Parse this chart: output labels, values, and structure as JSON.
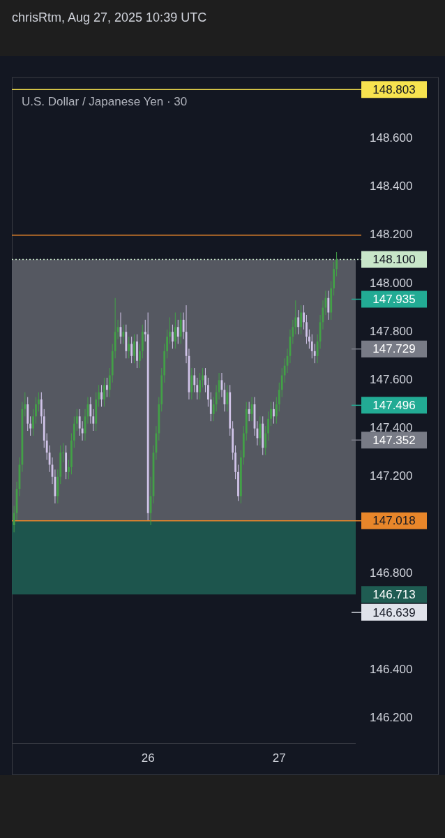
{
  "chart_data": {
    "type": "candlestick",
    "title": "U.S. Dollar / Japanese Yen · 30",
    "subtitle": "chrisRtm, Aug 27, 2025 10:39 UTC",
    "x": [
      "2025-08-24T23:30",
      "2025-08-25T00:00",
      "2025-08-25T00:30",
      "2025-08-25T01:00",
      "2025-08-25T01:30",
      "2025-08-25T02:00",
      "2025-08-25T02:30",
      "2025-08-25T03:00",
      "2025-08-25T03:30",
      "2025-08-25T04:00",
      "2025-08-25T04:30",
      "2025-08-25T05:00",
      "2025-08-25T05:30",
      "2025-08-25T06:00",
      "2025-08-25T06:30",
      "2025-08-25T07:00",
      "2025-08-25T07:30",
      "2025-08-25T08:00",
      "2025-08-25T08:30",
      "2025-08-25T09:00",
      "2025-08-25T09:30",
      "2025-08-25T10:00",
      "2025-08-25T10:30",
      "2025-08-25T11:00",
      "2025-08-25T11:30",
      "2025-08-25T12:00",
      "2025-08-25T12:30",
      "2025-08-25T13:00",
      "2025-08-25T13:30",
      "2025-08-25T14:00",
      "2025-08-25T14:30",
      "2025-08-25T15:00",
      "2025-08-25T15:30",
      "2025-08-25T16:00",
      "2025-08-25T16:30",
      "2025-08-25T17:00",
      "2025-08-25T17:30",
      "2025-08-25T18:00",
      "2025-08-25T18:30",
      "2025-08-25T19:00",
      "2025-08-25T19:30",
      "2025-08-25T20:00",
      "2025-08-25T20:30",
      "2025-08-25T21:00",
      "2025-08-25T21:30",
      "2025-08-25T22:00",
      "2025-08-25T22:30",
      "2025-08-25T23:00",
      "2025-08-25T23:30",
      "2025-08-26T00:00",
      "2025-08-26T00:30",
      "2025-08-26T01:00",
      "2025-08-26T01:30",
      "2025-08-26T02:00",
      "2025-08-26T02:30",
      "2025-08-26T03:00",
      "2025-08-26T03:30",
      "2025-08-26T04:00",
      "2025-08-26T04:30",
      "2025-08-26T05:00",
      "2025-08-26T05:30",
      "2025-08-26T06:00",
      "2025-08-26T06:30",
      "2025-08-26T07:00",
      "2025-08-26T07:30",
      "2025-08-26T08:00",
      "2025-08-26T08:30",
      "2025-08-26T09:00",
      "2025-08-26T09:30",
      "2025-08-26T10:00",
      "2025-08-26T10:30",
      "2025-08-26T11:00",
      "2025-08-26T11:30",
      "2025-08-26T12:00",
      "2025-08-26T12:30",
      "2025-08-26T13:00",
      "2025-08-26T13:30",
      "2025-08-26T14:00",
      "2025-08-26T14:30",
      "2025-08-26T15:00",
      "2025-08-26T15:30",
      "2025-08-26T16:00",
      "2025-08-26T16:30",
      "2025-08-26T17:00",
      "2025-08-26T17:30",
      "2025-08-26T18:00",
      "2025-08-26T18:30",
      "2025-08-26T19:00",
      "2025-08-26T19:30",
      "2025-08-26T20:00",
      "2025-08-26T20:30",
      "2025-08-26T21:00",
      "2025-08-26T21:30",
      "2025-08-26T22:00",
      "2025-08-26T22:30",
      "2025-08-26T23:00",
      "2025-08-26T23:30",
      "2025-08-27T00:00",
      "2025-08-27T00:30",
      "2025-08-27T01:00",
      "2025-08-27T01:30",
      "2025-08-27T02:00",
      "2025-08-27T02:30",
      "2025-08-27T03:00",
      "2025-08-27T03:30",
      "2025-08-27T04:00",
      "2025-08-27T04:30",
      "2025-08-27T05:00",
      "2025-08-27T05:30",
      "2025-08-27T06:00",
      "2025-08-27T06:30",
      "2025-08-27T07:00",
      "2025-08-27T07:30",
      "2025-08-27T08:00",
      "2025-08-27T08:30",
      "2025-08-27T09:00",
      "2025-08-27T09:30",
      "2025-08-27T10:00",
      "2025-08-27T10:30"
    ],
    "ohlc": [
      [
        147.0,
        147.08,
        146.97,
        147.05
      ],
      [
        147.05,
        147.18,
        147.02,
        147.15
      ],
      [
        147.15,
        147.28,
        147.12,
        147.25
      ],
      [
        147.25,
        147.51,
        147.22,
        147.48
      ],
      [
        147.48,
        147.55,
        147.45,
        147.5
      ],
      [
        147.5,
        147.53,
        147.39,
        147.42
      ],
      [
        147.42,
        147.45,
        147.37,
        147.4
      ],
      [
        147.4,
        147.48,
        147.37,
        147.45
      ],
      [
        147.45,
        147.53,
        147.42,
        147.5
      ],
      [
        147.5,
        147.55,
        147.47,
        147.52
      ],
      [
        147.52,
        147.55,
        147.42,
        147.45
      ],
      [
        147.45,
        147.48,
        147.32,
        147.35
      ],
      [
        147.35,
        147.38,
        147.27,
        147.3
      ],
      [
        147.3,
        147.33,
        147.22,
        147.25
      ],
      [
        147.25,
        147.28,
        147.17,
        147.2
      ],
      [
        147.2,
        147.23,
        147.09,
        147.12
      ],
      [
        147.12,
        147.23,
        147.09,
        147.2
      ],
      [
        147.2,
        147.33,
        147.17,
        147.3
      ],
      [
        147.3,
        147.34,
        147.26,
        147.3
      ],
      [
        147.3,
        147.33,
        147.19,
        147.22
      ],
      [
        147.22,
        147.27,
        147.19,
        147.24
      ],
      [
        147.24,
        147.38,
        147.21,
        147.35
      ],
      [
        147.35,
        147.45,
        147.32,
        147.42
      ],
      [
        147.42,
        147.48,
        147.39,
        147.45
      ],
      [
        147.45,
        147.48,
        147.37,
        147.4
      ],
      [
        147.4,
        147.43,
        147.35,
        147.38
      ],
      [
        147.38,
        147.48,
        147.35,
        147.45
      ],
      [
        147.45,
        147.53,
        147.42,
        147.5
      ],
      [
        147.5,
        147.53,
        147.42,
        147.45
      ],
      [
        147.45,
        147.48,
        147.39,
        147.42
      ],
      [
        147.42,
        147.55,
        147.39,
        147.52
      ],
      [
        147.52,
        147.58,
        147.49,
        147.55
      ],
      [
        147.55,
        147.58,
        147.49,
        147.52
      ],
      [
        147.52,
        147.61,
        147.49,
        147.58
      ],
      [
        147.58,
        147.61,
        147.53,
        147.56
      ],
      [
        147.56,
        147.65,
        147.53,
        147.62
      ],
      [
        147.62,
        147.75,
        147.59,
        147.72
      ],
      [
        147.72,
        147.94,
        147.69,
        147.8
      ],
      [
        147.8,
        147.85,
        147.77,
        147.82
      ],
      [
        147.82,
        147.88,
        147.75,
        147.78
      ],
      [
        147.78,
        147.83,
        147.75,
        147.8
      ],
      [
        147.8,
        147.83,
        147.69,
        147.72
      ],
      [
        147.72,
        147.78,
        147.69,
        147.75
      ],
      [
        147.75,
        147.78,
        147.67,
        147.7
      ],
      [
        147.7,
        147.79,
        147.67,
        147.76
      ],
      [
        147.76,
        147.79,
        147.65,
        147.68
      ],
      [
        147.68,
        147.75,
        147.65,
        147.72
      ],
      [
        147.72,
        147.83,
        147.69,
        147.8
      ],
      [
        147.8,
        147.85,
        147.76,
        147.79
      ],
      [
        147.79,
        147.88,
        147.02,
        147.05
      ],
      [
        147.05,
        147.2,
        147.0,
        147.12
      ],
      [
        147.12,
        147.33,
        147.09,
        147.3
      ],
      [
        147.3,
        147.41,
        147.27,
        147.38
      ],
      [
        147.38,
        147.53,
        147.35,
        147.5
      ],
      [
        147.5,
        147.65,
        147.47,
        147.62
      ],
      [
        147.62,
        147.75,
        147.59,
        147.72
      ],
      [
        147.72,
        147.81,
        147.69,
        147.78
      ],
      [
        147.78,
        147.86,
        147.75,
        147.8
      ],
      [
        147.8,
        147.83,
        147.73,
        147.76
      ],
      [
        147.76,
        147.88,
        147.73,
        147.82
      ],
      [
        147.82,
        147.85,
        147.75,
        147.78
      ],
      [
        147.78,
        147.88,
        147.75,
        147.85
      ],
      [
        147.85,
        147.88,
        147.77,
        147.8
      ],
      [
        147.8,
        147.91,
        147.67,
        147.7
      ],
      [
        147.7,
        147.73,
        147.52,
        147.55
      ],
      [
        147.55,
        147.65,
        147.52,
        147.62
      ],
      [
        147.62,
        147.65,
        147.55,
        147.58
      ],
      [
        147.58,
        147.61,
        147.52,
        147.55
      ],
      [
        147.55,
        147.63,
        147.52,
        147.6
      ],
      [
        147.6,
        147.65,
        147.57,
        147.62
      ],
      [
        147.62,
        147.65,
        147.55,
        147.58
      ],
      [
        147.58,
        147.61,
        147.49,
        147.52
      ],
      [
        147.52,
        147.55,
        147.43,
        147.46
      ],
      [
        147.46,
        147.53,
        147.43,
        147.5
      ],
      [
        147.5,
        147.58,
        147.47,
        147.55
      ],
      [
        147.55,
        147.63,
        147.52,
        147.6
      ],
      [
        147.6,
        147.63,
        147.53,
        147.56
      ],
      [
        147.56,
        147.59,
        147.47,
        147.5
      ],
      [
        147.5,
        147.58,
        147.47,
        147.55
      ],
      [
        147.55,
        147.58,
        147.37,
        147.4
      ],
      [
        147.4,
        147.43,
        147.27,
        147.3
      ],
      [
        147.3,
        147.33,
        147.19,
        147.22
      ],
      [
        147.22,
        147.25,
        147.1,
        147.12
      ],
      [
        147.12,
        147.31,
        147.09,
        147.28
      ],
      [
        147.28,
        147.41,
        147.25,
        147.38
      ],
      [
        147.38,
        147.51,
        147.35,
        147.48
      ],
      [
        147.48,
        147.51,
        147.43,
        147.46
      ],
      [
        147.46,
        147.53,
        147.43,
        147.5
      ],
      [
        147.5,
        147.53,
        147.37,
        147.4
      ],
      [
        147.4,
        147.43,
        147.33,
        147.36
      ],
      [
        147.36,
        147.45,
        147.33,
        147.42
      ],
      [
        147.42,
        147.45,
        147.29,
        147.32
      ],
      [
        147.32,
        147.41,
        147.29,
        147.38
      ],
      [
        147.38,
        147.47,
        147.35,
        147.44
      ],
      [
        147.44,
        147.51,
        147.41,
        147.48
      ],
      [
        147.48,
        147.51,
        147.42,
        147.45
      ],
      [
        147.45,
        147.53,
        147.42,
        147.5
      ],
      [
        147.5,
        147.59,
        147.47,
        147.56
      ],
      [
        147.56,
        147.65,
        147.53,
        147.62
      ],
      [
        147.62,
        147.69,
        147.59,
        147.66
      ],
      [
        147.66,
        147.73,
        147.63,
        147.7
      ],
      [
        147.7,
        147.81,
        147.67,
        147.78
      ],
      [
        147.78,
        147.85,
        147.75,
        147.82
      ],
      [
        147.82,
        147.93,
        147.79,
        147.86
      ],
      [
        147.86,
        147.89,
        147.79,
        147.82
      ],
      [
        147.82,
        147.91,
        147.79,
        147.88
      ],
      [
        147.88,
        147.91,
        147.81,
        147.84
      ],
      [
        147.84,
        147.87,
        147.75,
        147.78
      ],
      [
        147.78,
        147.81,
        147.73,
        147.76
      ],
      [
        147.76,
        147.79,
        147.69,
        147.72
      ],
      [
        147.72,
        147.75,
        147.67,
        147.7
      ],
      [
        147.7,
        147.79,
        147.67,
        147.76
      ],
      [
        147.76,
        147.87,
        147.73,
        147.84
      ],
      [
        147.84,
        147.93,
        147.81,
        147.9
      ],
      [
        147.9,
        147.97,
        147.87,
        147.94
      ],
      [
        147.94,
        147.97,
        147.85,
        147.88
      ],
      [
        147.88,
        148.01,
        147.85,
        147.98
      ],
      [
        147.98,
        148.09,
        147.95,
        148.06
      ],
      [
        148.06,
        148.13,
        148.03,
        148.1
      ]
    ],
    "colors": [
      "#43a047",
      "#43a047",
      "#43a047",
      "#43a047",
      "#43a047",
      "#d1c4e9",
      "#d1c4e9",
      "#43a047",
      "#43a047",
      "#43a047",
      "#d1c4e9",
      "#d1c4e9",
      "#d1c4e9",
      "#d1c4e9",
      "#d1c4e9",
      "#d1c4e9",
      "#43a047",
      "#43a047",
      "#43a047",
      "#d1c4e9",
      "#43a047",
      "#43a047",
      "#43a047",
      "#43a047",
      "#d1c4e9",
      "#d1c4e9",
      "#43a047",
      "#43a047",
      "#d1c4e9",
      "#d1c4e9",
      "#43a047",
      "#43a047",
      "#d1c4e9",
      "#43a047",
      "#d1c4e9",
      "#43a047",
      "#43a047",
      "#43a047",
      "#43a047",
      "#d1c4e9",
      "#43a047",
      "#d1c4e9",
      "#43a047",
      "#d1c4e9",
      "#43a047",
      "#d1c4e9",
      "#43a047",
      "#43a047",
      "#d1c4e9",
      "#d1c4e9",
      "#43a047",
      "#43a047",
      "#43a047",
      "#43a047",
      "#43a047",
      "#43a047",
      "#43a047",
      "#43a047",
      "#d1c4e9",
      "#43a047",
      "#d1c4e9",
      "#43a047",
      "#d1c4e9",
      "#d1c4e9",
      "#d1c4e9",
      "#43a047",
      "#d1c4e9",
      "#d1c4e9",
      "#43a047",
      "#43a047",
      "#d1c4e9",
      "#d1c4e9",
      "#d1c4e9",
      "#43a047",
      "#43a047",
      "#43a047",
      "#d1c4e9",
      "#d1c4e9",
      "#43a047",
      "#d1c4e9",
      "#d1c4e9",
      "#d1c4e9",
      "#d1c4e9",
      "#43a047",
      "#43a047",
      "#43a047",
      "#d1c4e9",
      "#43a047",
      "#d1c4e9",
      "#d1c4e9",
      "#43a047",
      "#d1c4e9",
      "#43a047",
      "#43a047",
      "#43a047",
      "#d1c4e9",
      "#43a047",
      "#43a047",
      "#43a047",
      "#43a047",
      "#43a047",
      "#43a047",
      "#43a047",
      "#43a047",
      "#d1c4e9",
      "#43a047",
      "#d1c4e9",
      "#d1c4e9",
      "#d1c4e9",
      "#d1c4e9",
      "#d1c4e9",
      "#43a047",
      "#43a047",
      "#43a047",
      "#43a047",
      "#d1c4e9",
      "#43a047",
      "#43a047",
      "#43a047"
    ],
    "xlim": [
      "2025-08-24T23:06",
      "2025-08-27T14:00"
    ],
    "xticks": [
      {
        "value": "2025-08-26",
        "label": "26"
      },
      {
        "value": "2025-08-27",
        "label": "27"
      }
    ],
    "ylim": [
      146.098,
      148.855
    ],
    "yticks": [
      {
        "value": 146.2,
        "label": "146.200"
      },
      {
        "value": 146.4,
        "label": "146.400"
      },
      {
        "value": 146.8,
        "label": "146.800"
      },
      {
        "value": 147.2,
        "label": "147.200"
      },
      {
        "value": 147.4,
        "label": "147.400"
      },
      {
        "value": 147.6,
        "label": "147.600"
      },
      {
        "value": 147.8,
        "label": "147.800"
      },
      {
        "value": 148.0,
        "label": "148.000"
      },
      {
        "value": 148.2,
        "label": "148.200"
      },
      {
        "value": 148.4,
        "label": "148.400"
      },
      {
        "value": 148.6,
        "label": "148.600"
      }
    ],
    "ref_lines": [
      {
        "axis": "y",
        "value": 148.803,
        "label": "148.803",
        "color": "#f7e34f",
        "line_style": "solid"
      },
      {
        "axis": "y",
        "value": 148.2,
        "color": "#e8862a",
        "line_style": "solid"
      },
      {
        "axis": "y",
        "value": 148.1,
        "label": "148.100",
        "color": "#c8e6c9",
        "line_style": "dotted"
      },
      {
        "axis": "y",
        "value": 147.018,
        "label": "147.018",
        "color": "#e8862a",
        "line_style": "solid"
      },
      {
        "axis": "y",
        "value": 147.935,
        "label": "147.935",
        "color": "#22ab94"
      },
      {
        "axis": "y",
        "value": 147.729,
        "label": "147.729",
        "color": "#787b86"
      },
      {
        "axis": "y",
        "value": 147.496,
        "label": "147.496",
        "color": "#22ab94"
      },
      {
        "axis": "y",
        "value": 147.352,
        "label": "147.352",
        "color": "#787b86"
      },
      {
        "axis": "y",
        "value": 146.639,
        "label": "146.639",
        "color": "#e0e3eb"
      }
    ],
    "bands": [
      {
        "axis": "y",
        "from": 147.018,
        "to": 148.1,
        "color": "#5d5f68"
      },
      {
        "axis": "y",
        "from": 146.713,
        "to": 147.018,
        "label": "146.713",
        "color": "#1f5c52"
      }
    ],
    "legend": false
  }
}
